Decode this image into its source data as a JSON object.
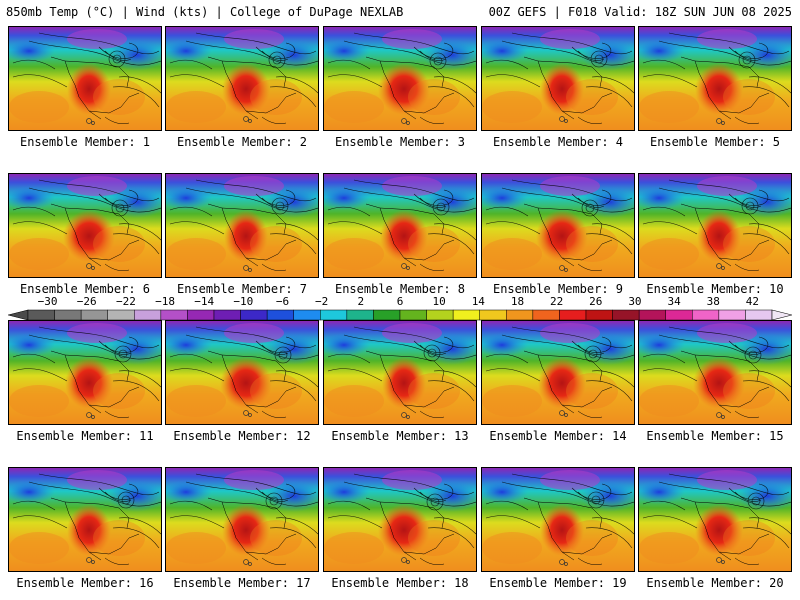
{
  "header": {
    "left_title": "850mb Temp (°C) | Wind (kts) | College of DuPage NEXLAB",
    "right_title": "00Z GEFS | F018 Valid: 18Z SUN JUN 08 2025"
  },
  "members": [
    {
      "label": "Ensemble Member: 1"
    },
    {
      "label": "Ensemble Member: 2"
    },
    {
      "label": "Ensemble Member: 3"
    },
    {
      "label": "Ensemble Member: 4"
    },
    {
      "label": "Ensemble Member: 5"
    },
    {
      "label": "Ensemble Member: 6"
    },
    {
      "label": "Ensemble Member: 7"
    },
    {
      "label": "Ensemble Member: 8"
    },
    {
      "label": "Ensemble Member: 9"
    },
    {
      "label": "Ensemble Member: 10"
    },
    {
      "label": "Ensemble Member: 11"
    },
    {
      "label": "Ensemble Member: 12"
    },
    {
      "label": "Ensemble Member: 13"
    },
    {
      "label": "Ensemble Member: 14"
    },
    {
      "label": "Ensemble Member: 15"
    },
    {
      "label": "Ensemble Member: 16"
    },
    {
      "label": "Ensemble Member: 17"
    },
    {
      "label": "Ensemble Member: 18"
    },
    {
      "label": "Ensemble Member: 19"
    },
    {
      "label": "Ensemble Member: 20"
    }
  ],
  "colorbar": {
    "tick_labels": [
      "−30",
      "−26",
      "−22",
      "−18",
      "−14",
      "−10",
      "−6",
      "−2",
      "2",
      "6",
      "10",
      "14",
      "18",
      "22",
      "26",
      "30",
      "34",
      "38",
      "42"
    ],
    "colors": [
      "#5a5a5a",
      "#787878",
      "#969696",
      "#b4b4b4",
      "#c8a0dc",
      "#b450c8",
      "#9628b4",
      "#6e1eb4",
      "#3c28c8",
      "#1e50dc",
      "#1e8cf0",
      "#1ec8dc",
      "#1eb48c",
      "#28a028",
      "#64b41e",
      "#b4d21e",
      "#f0f01e",
      "#f0c81e",
      "#f0961e",
      "#f0641e",
      "#e61e1e",
      "#be1414",
      "#961428",
      "#b4145a",
      "#dc2896",
      "#f064c8",
      "#f0a0e6",
      "#e6c8f0"
    ]
  }
}
